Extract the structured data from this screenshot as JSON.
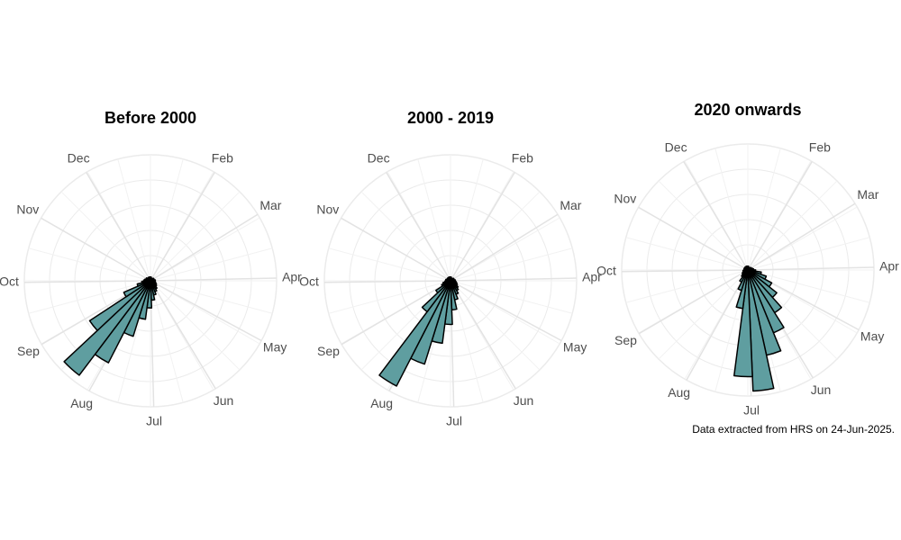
{
  "chart_data": [
    {
      "type": "polar_bar",
      "title": "Before 2000",
      "color": "#5f9ea0",
      "edge_color": "#000000",
      "x": [
        5,
        15,
        25,
        35,
        45,
        55,
        65,
        75,
        85,
        95,
        105,
        115,
        125,
        135,
        145,
        155,
        165,
        175,
        185,
        195,
        205,
        215,
        225,
        235,
        245,
        255,
        265,
        275,
        285,
        295,
        305,
        315,
        325,
        335,
        345,
        355
      ],
      "values": [
        4,
        3,
        3,
        3,
        3,
        4,
        4,
        4,
        5,
        5,
        5,
        6,
        7,
        8,
        10,
        12,
        15,
        20,
        28,
        40,
        60,
        95,
        122,
        75,
        30,
        14,
        9,
        7,
        6,
        5,
        5,
        4,
        4,
        4,
        4,
        4
      ],
      "xlim": [
        0,
        365
      ],
      "ylim": [
        0,
        130
      ],
      "xticks": [
        {
          "value": 31,
          "label": "Feb"
        },
        {
          "value": 59,
          "label": "Mar"
        },
        {
          "value": 90,
          "label": "Apr"
        },
        {
          "value": 120,
          "label": "May"
        },
        {
          "value": 151,
          "label": "Jun"
        },
        {
          "value": 181,
          "label": "Jul"
        },
        {
          "value": 212,
          "label": "Aug"
        },
        {
          "value": 243,
          "label": "Sep"
        },
        {
          "value": 273,
          "label": "Oct"
        },
        {
          "value": 304,
          "label": "Nov"
        },
        {
          "value": 334,
          "label": "Dec"
        }
      ]
    },
    {
      "type": "polar_bar",
      "title": "2000 - 2019",
      "color": "#5f9ea0",
      "edge_color": "#000000",
      "x": [
        5,
        15,
        25,
        35,
        45,
        55,
        65,
        75,
        85,
        95,
        105,
        115,
        125,
        135,
        145,
        155,
        165,
        175,
        185,
        195,
        205,
        215,
        225,
        235,
        245,
        255,
        265,
        275,
        285,
        295,
        305,
        315,
        325,
        335,
        345,
        355
      ],
      "values": [
        4,
        3,
        3,
        3,
        3,
        4,
        4,
        4,
        5,
        5,
        6,
        7,
        8,
        10,
        12,
        15,
        20,
        30,
        45,
        65,
        90,
        122,
        40,
        18,
        10,
        8,
        6,
        5,
        5,
        4,
        4,
        4,
        4,
        4,
        4,
        4
      ],
      "xlim": [
        0,
        365
      ],
      "ylim": [
        0,
        130
      ],
      "xticks": [
        {
          "value": 31,
          "label": "Feb"
        },
        {
          "value": 59,
          "label": "Mar"
        },
        {
          "value": 90,
          "label": "Apr"
        },
        {
          "value": 120,
          "label": "May"
        },
        {
          "value": 151,
          "label": "Jun"
        },
        {
          "value": 181,
          "label": "Jul"
        },
        {
          "value": 212,
          "label": "Aug"
        },
        {
          "value": 243,
          "label": "Sep"
        },
        {
          "value": 273,
          "label": "Oct"
        },
        {
          "value": 304,
          "label": "Nov"
        },
        {
          "value": 334,
          "label": "Dec"
        }
      ]
    },
    {
      "type": "polar_bar",
      "title": "2020 onwards",
      "color": "#5f9ea0",
      "edge_color": "#000000",
      "x": [
        5,
        15,
        25,
        35,
        45,
        55,
        65,
        75,
        85,
        95,
        105,
        115,
        125,
        135,
        145,
        155,
        165,
        175,
        185,
        195,
        205,
        215,
        225,
        235,
        245,
        255,
        265,
        275,
        285,
        295,
        305,
        315,
        325,
        335,
        345,
        355
      ],
      "values": [
        4,
        3,
        3,
        3,
        3,
        4,
        4,
        5,
        6,
        8,
        14,
        20,
        28,
        38,
        52,
        70,
        90,
        125,
        110,
        40,
        22,
        14,
        9,
        7,
        6,
        5,
        5,
        4,
        4,
        4,
        4,
        4,
        4,
        4,
        4,
        4
      ],
      "xlim": [
        0,
        365
      ],
      "ylim": [
        0,
        130
      ],
      "xticks": [
        {
          "value": 31,
          "label": "Feb"
        },
        {
          "value": 59,
          "label": "Mar"
        },
        {
          "value": 90,
          "label": "Apr"
        },
        {
          "value": 120,
          "label": "May"
        },
        {
          "value": 151,
          "label": "Jun"
        },
        {
          "value": 181,
          "label": "Jul"
        },
        {
          "value": 212,
          "label": "Aug"
        },
        {
          "value": 243,
          "label": "Sep"
        },
        {
          "value": 273,
          "label": "Oct"
        },
        {
          "value": 304,
          "label": "Nov"
        },
        {
          "value": 334,
          "label": "Dec"
        }
      ]
    }
  ],
  "caption": "Data extracted from HRS on 24-Jun-2025."
}
